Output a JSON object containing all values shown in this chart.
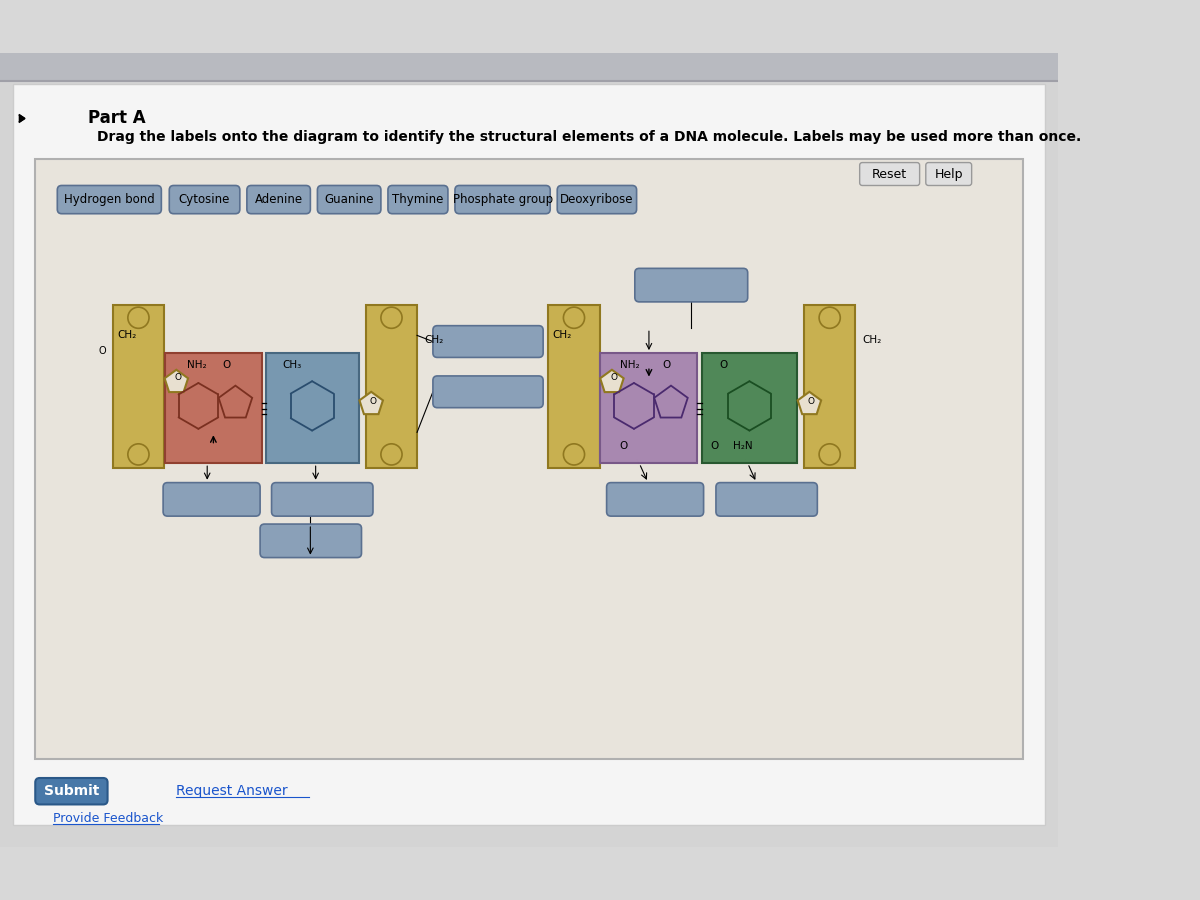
{
  "bg_page": "#d8d8d8",
  "bg_white": "#f5f5f5",
  "bg_frame": "#e8e4dc",
  "label_bg": "#8aa0b8",
  "label_border": "#5a7090",
  "yellow_bg": "#c8b050",
  "yellow_border": "#907820",
  "red_bg": "#c07060",
  "red_border": "#904030",
  "blue_base_bg": "#7898b0",
  "blue_base_border": "#486880",
  "purple_bg": "#a888b0",
  "purple_border": "#785888",
  "green_bg": "#508858",
  "green_border": "#285830",
  "circle_fc": "#c8b050",
  "circle_ec": "#907820",
  "pent_fc": "#e8e0d0",
  "pent_ec": "#907820",
  "btn_bg": "#e0e0e0",
  "btn_border": "#999999",
  "submit_bg": "#4878a8",
  "part_a": "Part A",
  "instruction": "Drag the labels onto the diagram to identify the structural elements of a DNA molecule. Labels may be used more than once.",
  "labels": [
    "Hydrogen bond",
    "Cytosine",
    "Adenine",
    "Guanine",
    "Thymine",
    "Phosphate group",
    "Deoxyribose"
  ],
  "submit_text": "Submit",
  "request_text": "Request Answer",
  "provide_text": "Provide Feedback",
  "reset_text": "Reset",
  "help_text": "Help"
}
